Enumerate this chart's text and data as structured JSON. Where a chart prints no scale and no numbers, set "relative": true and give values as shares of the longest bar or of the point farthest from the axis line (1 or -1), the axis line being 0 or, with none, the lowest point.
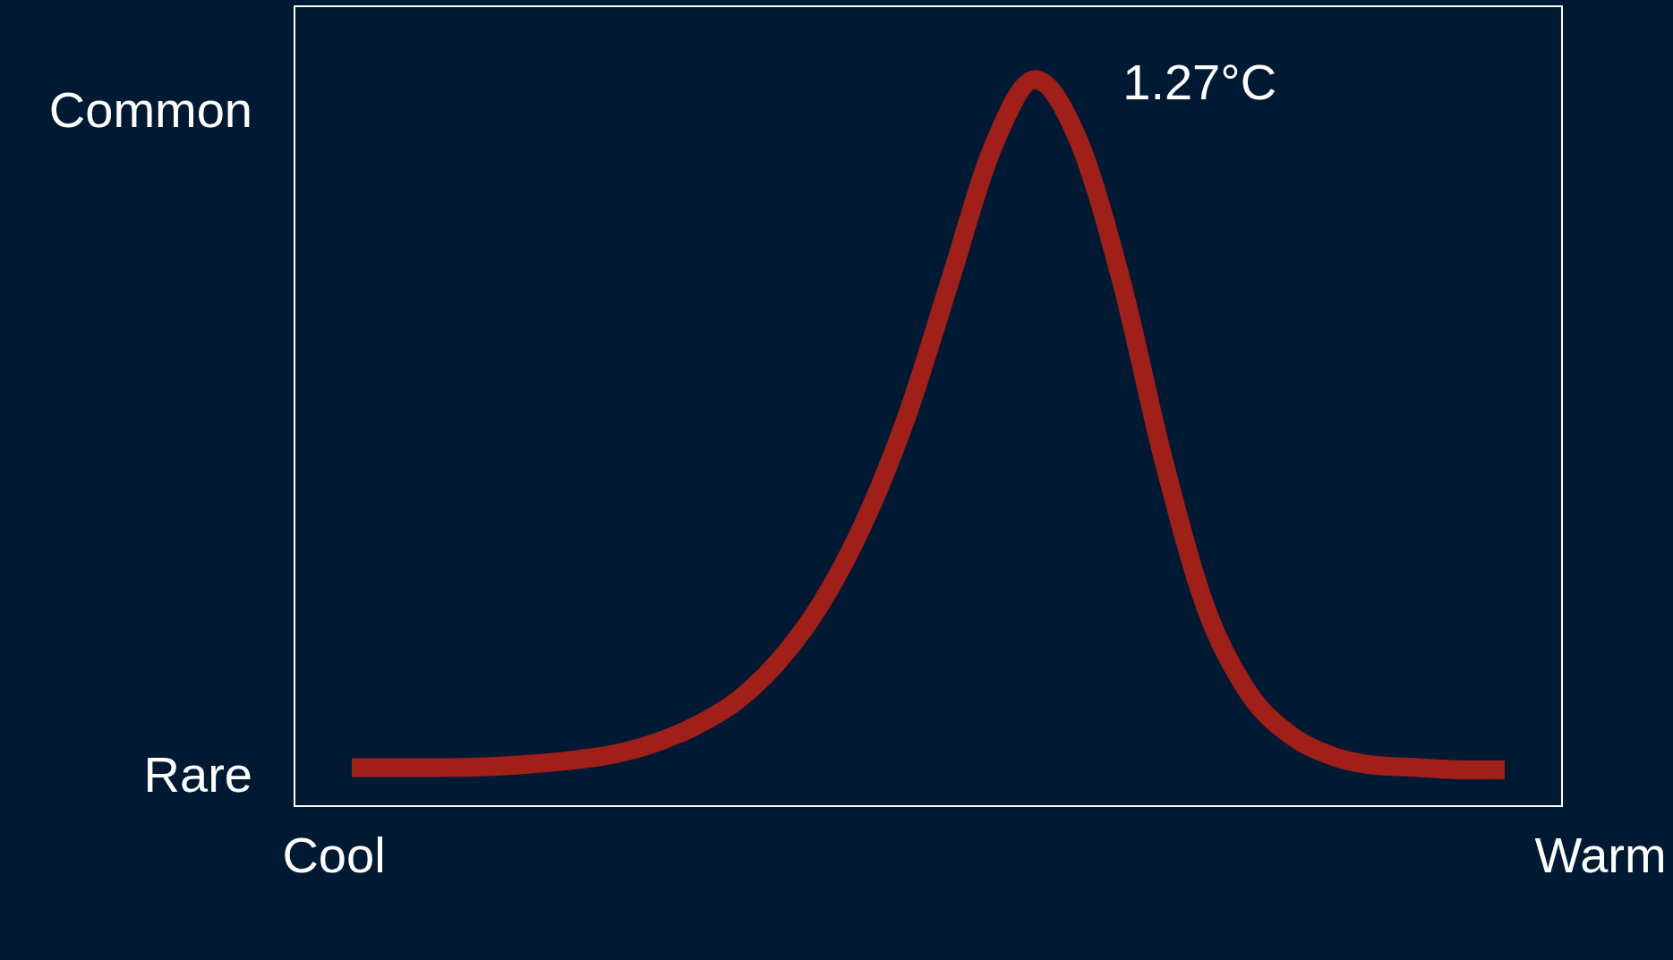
{
  "chart_data": {
    "type": "line",
    "relative": true,
    "categories": [
      null,
      null,
      null,
      null,
      null,
      null,
      null,
      null,
      null,
      null,
      null,
      null,
      null,
      null,
      null,
      null,
      null,
      null,
      null,
      null,
      null,
      null,
      null,
      null,
      null,
      null,
      null,
      null
    ],
    "series": [
      {
        "color": "#a01f18",
        "values": [
          0.053,
          0.053,
          0.053,
          0.054,
          0.057,
          0.062,
          0.07,
          0.085,
          0.109,
          0.144,
          0.2,
          0.28,
          0.391,
          0.537,
          0.721,
          0.905,
          1,
          0.919,
          0.728,
          0.479,
          0.273,
          0.156,
          0.097,
          0.068,
          0.056,
          0.053,
          0.05,
          0.05
        ]
      }
    ],
    "annotations": [
      "1.27°C",
      "Common",
      "Rare",
      "Cool",
      "Warm"
    ]
  }
}
